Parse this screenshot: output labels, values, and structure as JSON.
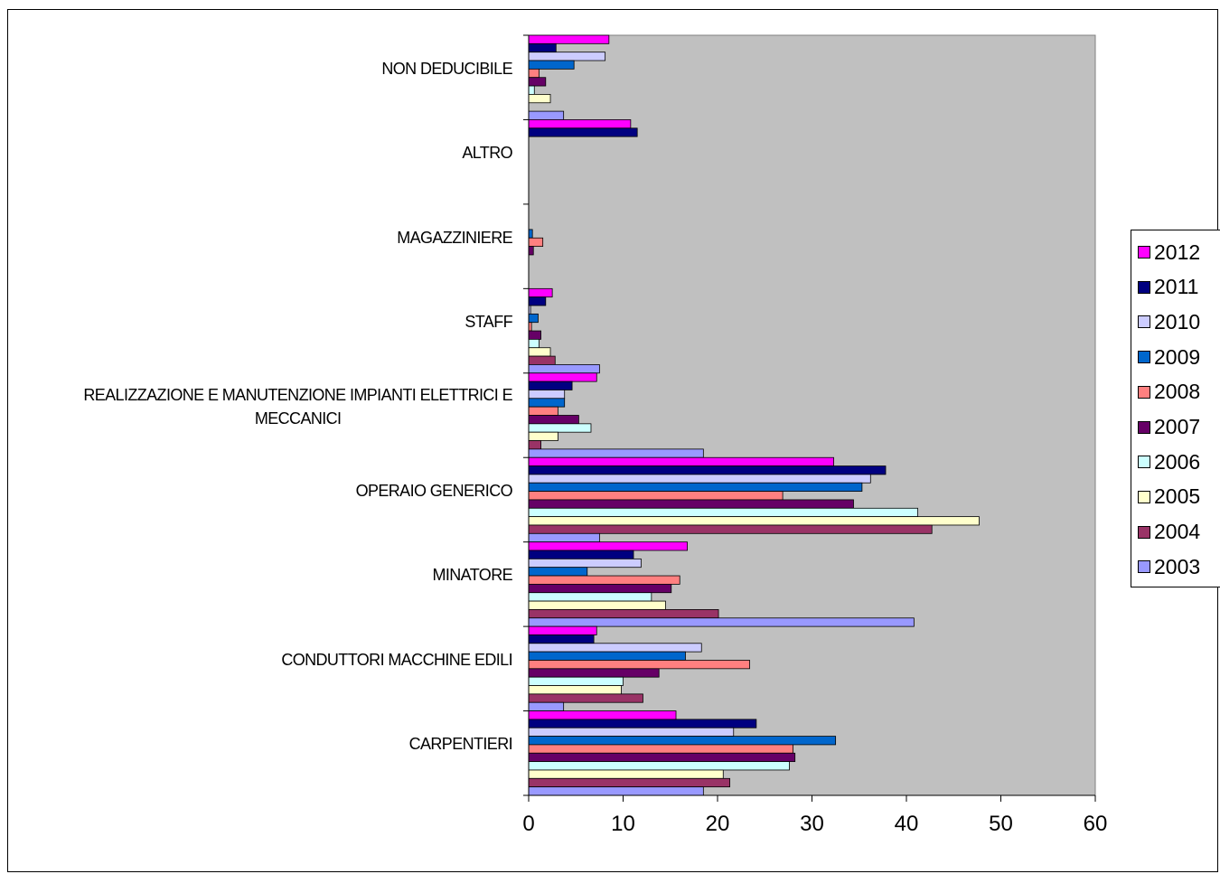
{
  "chart_data": {
    "type": "bar",
    "orientation": "horizontal",
    "categories": [
      "NON DEDUCIBILE",
      "ALTRO",
      "MAGAZZINIERE",
      "STAFF",
      "REALIZZAZIONE E MANUTENZIONE IMPIANTI ELETTRICI E MECCANICI",
      "OPERAIO GENERICO",
      "MINATORE",
      "CONDUTTORI MACCHINE EDILI",
      "CARPENTIERI"
    ],
    "category_lines": [
      [
        "NON DEDUCIBILE"
      ],
      [
        "ALTRO"
      ],
      [
        "MAGAZZINIERE"
      ],
      [
        "STAFF"
      ],
      [
        "REALIZZAZIONE E MANUTENZIONE IMPIANTI ELETTRICI E",
        "MECCANICI"
      ],
      [
        "OPERAIO GENERICO"
      ],
      [
        "MINATORE"
      ],
      [
        "CONDUTTORI MACCHINE EDILI"
      ],
      [
        "CARPENTIERI"
      ]
    ],
    "series": [
      {
        "name": "2012",
        "color": "#ff00ff",
        "values": [
          8.5,
          10.8,
          0,
          2.5,
          7.2,
          32.3,
          16.8,
          7.2,
          15.6
        ]
      },
      {
        "name": "2011",
        "color": "#000080",
        "values": [
          2.9,
          11.5,
          0,
          1.8,
          4.6,
          37.8,
          11.1,
          6.9,
          24.1
        ]
      },
      {
        "name": "2010",
        "color": "#ccccff",
        "values": [
          8.1,
          0,
          0,
          0.2,
          3.8,
          36.2,
          11.9,
          18.3,
          21.7
        ]
      },
      {
        "name": "2009",
        "color": "#0066cc",
        "values": [
          4.8,
          0,
          0.4,
          1.0,
          3.8,
          35.3,
          6.2,
          16.6,
          32.5
        ]
      },
      {
        "name": "2008",
        "color": "#ff8080",
        "values": [
          1.1,
          0,
          1.5,
          0.3,
          3.1,
          26.9,
          16.0,
          23.4,
          28.0
        ]
      },
      {
        "name": "2007",
        "color": "#660066",
        "values": [
          1.8,
          0,
          0.5,
          1.3,
          5.3,
          34.4,
          15.1,
          13.8,
          28.2
        ]
      },
      {
        "name": "2006",
        "color": "#ccffff",
        "values": [
          0.6,
          0,
          0,
          1.1,
          6.6,
          41.2,
          13.0,
          10.0,
          27.6
        ]
      },
      {
        "name": "2005",
        "color": "#ffffcc",
        "values": [
          2.3,
          0,
          0,
          2.3,
          3.1,
          47.7,
          14.5,
          9.8,
          20.6
        ]
      },
      {
        "name": "2004",
        "color": "#993366",
        "values": [
          0,
          0,
          0,
          2.8,
          1.3,
          42.7,
          20.1,
          12.1,
          21.3
        ]
      },
      {
        "name": "2003",
        "color": "#9999ff",
        "values": [
          3.7,
          0,
          0,
          7.5,
          18.5,
          7.5,
          40.8,
          3.7,
          18.5
        ]
      }
    ],
    "xlim": [
      0,
      60
    ],
    "xticks": [
      "0",
      "10",
      "20",
      "30",
      "40",
      "50",
      "60"
    ],
    "legend_order": [
      "2012",
      "2011",
      "2010",
      "2009",
      "2008",
      "2007",
      "2006",
      "2005",
      "2004",
      "2003"
    ],
    "legend_placement": "right",
    "plot_background": "#c0c0c0",
    "grid": false
  }
}
